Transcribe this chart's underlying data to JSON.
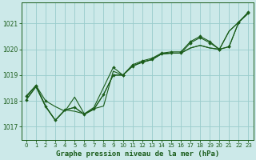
{
  "xlabel": "Graphe pression niveau de la mer (hPa)",
  "xlim": [
    -0.5,
    23.5
  ],
  "ylim": [
    1016.5,
    1021.8
  ],
  "yticks": [
    1017,
    1018,
    1019,
    1020,
    1021
  ],
  "xticks": [
    0,
    1,
    2,
    3,
    4,
    5,
    6,
    7,
    8,
    9,
    10,
    11,
    12,
    13,
    14,
    15,
    16,
    17,
    18,
    19,
    20,
    21,
    22,
    23
  ],
  "bg_color": "#cce9e9",
  "grid_color": "#99cccc",
  "line_color": "#1a5c1a",
  "line1_x": [
    0,
    1,
    2,
    3,
    4,
    5,
    6,
    7,
    8,
    9,
    10,
    11,
    12,
    13,
    14,
    15,
    16,
    17,
    18,
    19,
    20,
    21,
    22,
    23
  ],
  "line1_y": [
    1018.05,
    1018.55,
    1017.78,
    1017.25,
    1017.65,
    1017.75,
    1017.48,
    1017.68,
    1018.25,
    1019.0,
    1019.0,
    1019.35,
    1019.5,
    1019.6,
    1019.82,
    1019.85,
    1019.85,
    1020.25,
    1020.45,
    1020.25,
    1020.0,
    1020.1,
    1021.05,
    1021.4
  ],
  "line2_x": [
    0,
    1,
    2,
    3,
    4,
    5,
    6,
    7,
    8,
    9,
    10,
    11,
    12,
    13,
    14,
    15,
    16,
    17,
    18,
    19,
    20,
    21,
    22,
    23
  ],
  "line2_y": [
    1018.05,
    1018.55,
    1017.78,
    1017.25,
    1017.65,
    1017.75,
    1017.48,
    1017.68,
    1018.25,
    1019.0,
    1019.0,
    1019.35,
    1019.5,
    1019.6,
    1019.82,
    1019.85,
    1019.85,
    1020.05,
    1020.15,
    1020.05,
    1020.0,
    1020.7,
    1021.05,
    1021.4
  ],
  "line3_x": [
    0,
    1,
    2,
    3,
    4,
    5,
    6,
    7,
    8,
    9,
    10,
    11,
    12,
    13,
    14,
    15,
    16,
    17,
    18,
    19,
    20,
    21,
    22,
    23
  ],
  "line3_y": [
    1018.15,
    1018.6,
    1017.8,
    1017.25,
    1017.65,
    1017.6,
    1017.5,
    1017.7,
    1017.8,
    1019.15,
    1019.0,
    1019.35,
    1019.5,
    1019.6,
    1019.82,
    1019.85,
    1019.85,
    1020.05,
    1020.15,
    1020.05,
    1020.0,
    1020.7,
    1021.05,
    1021.4
  ],
  "line4_x": [
    0,
    1,
    2,
    3,
    4,
    5,
    6,
    7,
    9,
    10,
    11,
    12,
    13,
    14,
    15,
    16,
    17,
    18,
    19,
    20,
    21,
    22,
    23
  ],
  "line4_y": [
    1018.2,
    1018.6,
    1018.0,
    1017.78,
    1017.6,
    1018.15,
    1017.5,
    1017.75,
    1019.3,
    1019.0,
    1019.4,
    1019.55,
    1019.65,
    1019.85,
    1019.9,
    1019.9,
    1020.3,
    1020.5,
    1020.3,
    1020.0,
    1020.1,
    1021.05,
    1021.45
  ],
  "markers1_x": [
    0,
    1,
    2,
    3,
    4,
    5,
    6,
    7,
    8,
    9,
    10,
    11,
    12,
    13,
    14,
    15,
    16,
    17,
    18,
    19,
    20,
    21,
    22,
    23
  ],
  "markers1_y": [
    1018.05,
    1018.55,
    1017.78,
    1017.25,
    1017.65,
    1017.75,
    1017.48,
    1017.68,
    1018.25,
    1019.0,
    1019.0,
    1019.35,
    1019.5,
    1019.6,
    1019.82,
    1019.85,
    1019.85,
    1020.25,
    1020.45,
    1020.25,
    1020.0,
    1020.1,
    1021.05,
    1021.4
  ],
  "markers2_x": [
    0,
    1,
    2,
    9,
    10,
    11,
    12,
    13,
    14,
    15,
    16,
    17,
    18,
    19,
    20,
    21,
    22,
    23
  ],
  "markers2_y": [
    1018.2,
    1018.6,
    1018.0,
    1019.3,
    1019.0,
    1019.4,
    1019.55,
    1019.65,
    1019.85,
    1019.9,
    1019.9,
    1020.3,
    1020.5,
    1020.3,
    1020.0,
    1020.1,
    1021.05,
    1021.45
  ]
}
